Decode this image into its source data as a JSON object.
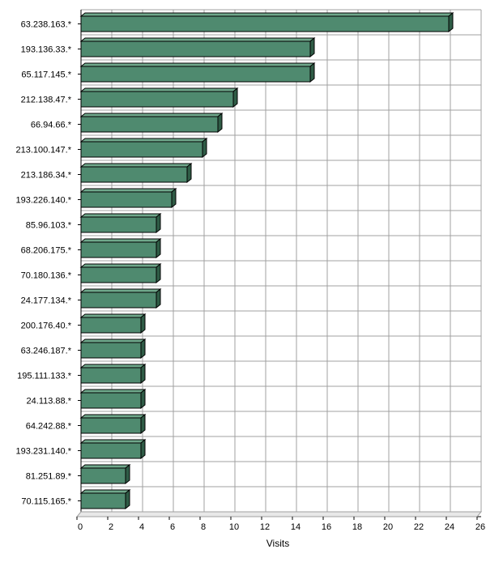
{
  "chart_data": {
    "type": "bar",
    "orientation": "horizontal",
    "categories": [
      "63.238.163.*",
      "193.136.33.*",
      "65.117.145.*",
      "212.138.47.*",
      "66.94.66.*",
      "213.100.147.*",
      "213.186.34.*",
      "193.226.140.*",
      "85.96.103.*",
      "68.206.175.*",
      "70.180.136.*",
      "24.177.134.*",
      "200.176.40.*",
      "63.246.187.*",
      "195.111.133.*",
      "24.113.88.*",
      "64.242.88.*",
      "193.231.140.*",
      "81.251.89.*",
      "70.115.165.*"
    ],
    "values": [
      24,
      15,
      15,
      10,
      9,
      8,
      7,
      6,
      5,
      5,
      5,
      5,
      4,
      4,
      4,
      4,
      4,
      4,
      3,
      3
    ],
    "xlabel": "Visits",
    "xlim": [
      0,
      26
    ],
    "xticks": [
      "0",
      "2",
      "4",
      "6",
      "8",
      "10",
      "12",
      "14",
      "16",
      "18",
      "20",
      "22",
      "24",
      "26"
    ],
    "grid": true,
    "bar_color": "#4f8a6f"
  }
}
